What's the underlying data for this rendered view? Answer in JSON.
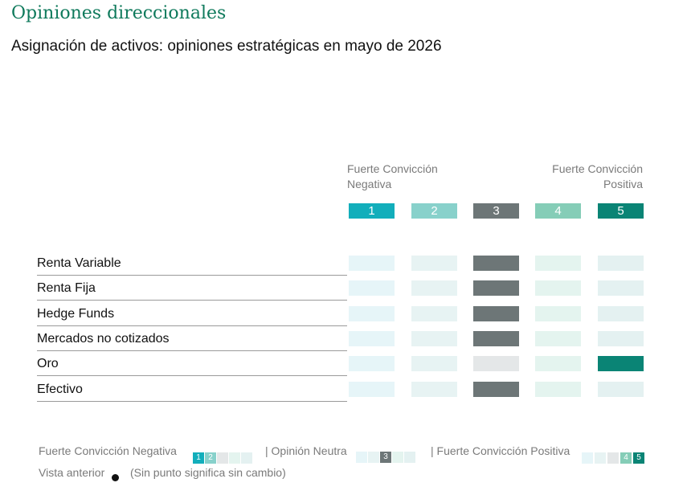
{
  "header": {
    "title": "Opiniones direccionales",
    "subtitle": "Asignación de activos: opiniones estratégicas en mayo de 2026"
  },
  "scale": {
    "negative_label_line1": "Fuerte Convicción",
    "negative_label_line2": "Negativa",
    "positive_label_line1": "Fuerte Convicción",
    "positive_label_line2": "Positiva",
    "levels": [
      "1",
      "2",
      "3",
      "4",
      "5"
    ],
    "header_colors": [
      "#12aebb",
      "#88d1cb",
      "#6d7677",
      "#85cdb7",
      "#0a8475"
    ],
    "inactive_colors": [
      "#e6f5f8",
      "#e7f3f3",
      "#e4e7e8",
      "#e4f4ef",
      "#e4f1f1"
    ],
    "active_colors": [
      "#12aebb",
      "#88d1cb",
      "#6d7677",
      "#85cdb7",
      "#0a8475"
    ]
  },
  "rows": [
    {
      "label": "Renta Variable",
      "view": 3
    },
    {
      "label": "Renta Fija",
      "view": 3
    },
    {
      "label": "Hedge Funds",
      "view": 3
    },
    {
      "label": "Mercados no cotizados",
      "view": 3
    },
    {
      "label": "Oro",
      "view": 5
    },
    {
      "label": "Efectivo",
      "view": 3
    }
  ],
  "legend": {
    "negative_text": "Fuerte Convicción Negativa",
    "neutral_text": "| Opinión Neutra",
    "positive_text": "| Fuerte Convicción Positiva",
    "neg_nums": [
      "1",
      "2"
    ],
    "neutral_num": "3",
    "pos_nums": [
      "4",
      "5"
    ],
    "previous_view_text": "Vista anterior",
    "no_change_text": "(Sin punto significa sin cambio)"
  }
}
